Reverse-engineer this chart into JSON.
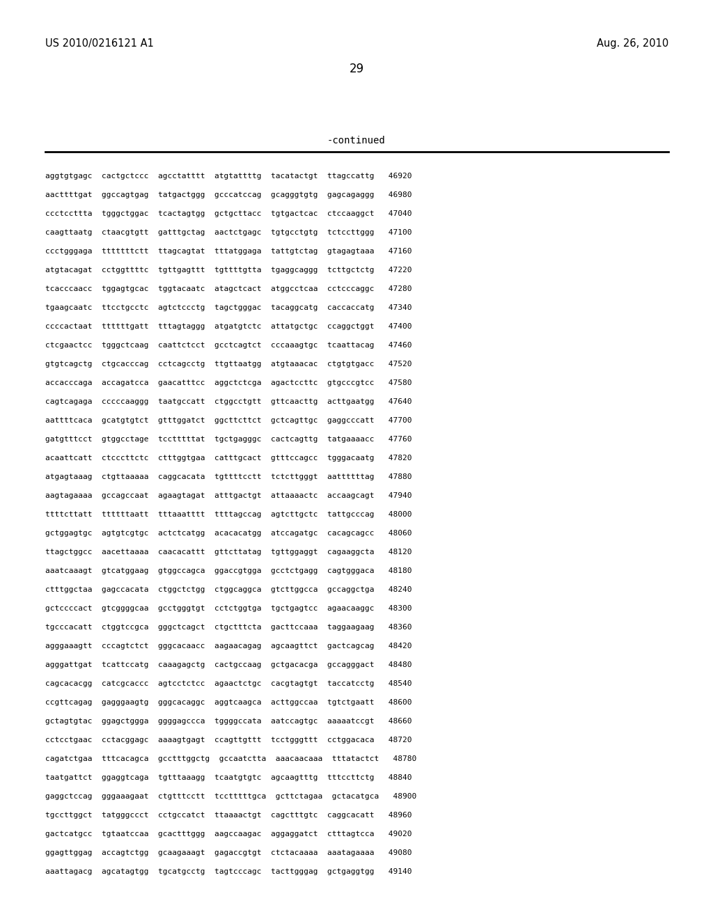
{
  "header_left": "US 2010/0216121 A1",
  "header_right": "Aug. 26, 2010",
  "page_number": "29",
  "continued_label": "-continued",
  "background_color": "#ffffff",
  "text_color": "#000000",
  "font_size_header": 10.5,
  "font_size_page": 12,
  "font_size_continued": 10,
  "font_size_sequence": 8.0,
  "sequence_lines": [
    "aggtgtgagc  cactgctccc  agcctatttt  atgtattttg  tacatactgt  ttagccattg   46920",
    "aacttttgat  ggccagtgag  tatgactggg  gcccatccag  gcagggtgtg  gagcagaggg   46980",
    "ccctccttta  tgggctggac  tcactagtgg  gctgcttacc  tgtgactcac  ctccaaggct   47040",
    "caagttaatg  ctaacgtgtt  gatttgctag  aactctgagc  tgtgcctgtg  tctccttggg   47100",
    "ccctgggaga  tttttttctt  ttagcagtat  tttatggaga  tattgtctag  gtagagtaaa   47160",
    "atgtacagat  cctggttttc  tgttgagttt  tgttttgtta  tgaggcaggg  tcttgctctg   47220",
    "tcacccaacc  tggagtgcac  tggtacaatc  atagctcact  atggcctcaa  cctcccaggc   47280",
    "tgaagcaatc  ttcctgcctc  agtctccctg  tagctgggac  tacaggcatg  caccaccatg   47340",
    "ccccactaat  ttttttgatt  tttagtaggg  atgatgtctc  attatgctgc  ccaggctggt   47400",
    "ctcgaactcc  tgggctcaag  caattctcct  gcctcagtct  cccaaagtgc  tcaattacag   47460",
    "gtgtcagctg  ctgcacccag  cctcagcctg  ttgttaatgg  atgtaaacac  ctgtgtgacc   47520",
    "accacccaga  accagatcca  gaacatttcc  aggctctcga  agactccttc  gtgcccgtcc   47580",
    "cagtcagaga  cccccaaggg  taatgccatt  ctggcctgtt  gttcaacttg  acttgaatgg   47640",
    "aattttcaca  gcatgtgtct  gtttggatct  ggcttcttct  gctcagttgc  gaggcccatt   47700",
    "gatgtttcct  gtggcctage  tcctttttat  tgctgagggc  cactcagttg  tatgaaaacc   47760",
    "acaattcatt  ctcccttctc  ctttggtgaa  catttgcact  gtttccagcc  tgggacaatg   47820",
    "atgagtaaag  ctgttaaaaa  caggcacata  tgttttcctt  tctcttgggt  aattttttag   47880",
    "aagtagaaaa  gccagccaat  agaagtagat  atttgactgt  attaaaactc  accaagcagt   47940",
    "ttttcttatt  ttttttaatt  tttaaatttt  ttttagccag  agtcttgctc  tattgcccag   48000",
    "gctggagtgc  agtgtcgtgc  actctcatgg  acacacatgg  atccagatgc  cacagcagcc   48060",
    "ttagctggcc  aacettaaaa  caacacattt  gttcttatag  tgttggaggt  cagaaggcta   48120",
    "aaatcaaagt  gtcatggaag  gtggccagca  ggaccgtgga  gcctctgagg  cagtgggaca   48180",
    "ctttggctaa  gagccacata  ctggctctgg  ctggcaggca  gtcttggcca  gccaggctga   48240",
    "gctccccact  gtcggggcaa  gcctgggtgt  cctctggtga  tgctgagtcc  agaacaaggc   48300",
    "tgcccacatt  ctggtccgca  gggctcagct  ctgctttcta  gacttccaaa  taggaagaag   48360",
    "agggaaagtt  cccagtctct  gggcacaacc  aagaacagag  agcaagttct  gactcagcag   48420",
    "agggattgat  tcattccatg  caaagagctg  cactgccaag  gctgacacga  gccagggact   48480",
    "cagcacacgg  catcgcaccc  agtcctctcc  agaactctgc  cacgtagtgt  taccatcctg   48540",
    "ccgttcagag  gagggaagtg  gggcacaggc  aggtcaagca  acttggccaa  tgtctgaatt   48600",
    "gctagtgtac  ggagctggga  ggggagccca  tggggccata  aatccagtgc  aaaaatccgt   48660",
    "cctcctgaac  cctacggagc  aaaagtgagt  ccagttgttt  tcctgggttt  cctggacaca   48720",
    "cagatctgaa  tttcacagca  gcctttggctg  gccaatctta  aaacaacaaa  tttatactct   48780",
    "taatgattct  ggaggtcaga  tgtttaaagg  tcaatgtgtc  agcaagtttg  tttccttctg   48840",
    "gaggctccag  gggaaagaat  ctgtttcctt  tcctttttgca  gcttctagaa  gctacatgca   48900",
    "tgccttggct  tatgggccct  cctgccatct  ttaaaactgt  cagctttgtc  caggcacatt   48960",
    "gactcatgcc  tgtaatccaa  gcactttggg  aagccaagac  aggaggatct  ctttagtcca   49020",
    "ggagttggag  accagtctgg  gcaagaaagt  gagaccgtgt  ctctacaaaa  aaatagaaaa   49080",
    "aaattagacg  agcatagtgg  tgcatgcctg  tagtcccagc  tacttgggag  gctgaggtgg   49140"
  ]
}
